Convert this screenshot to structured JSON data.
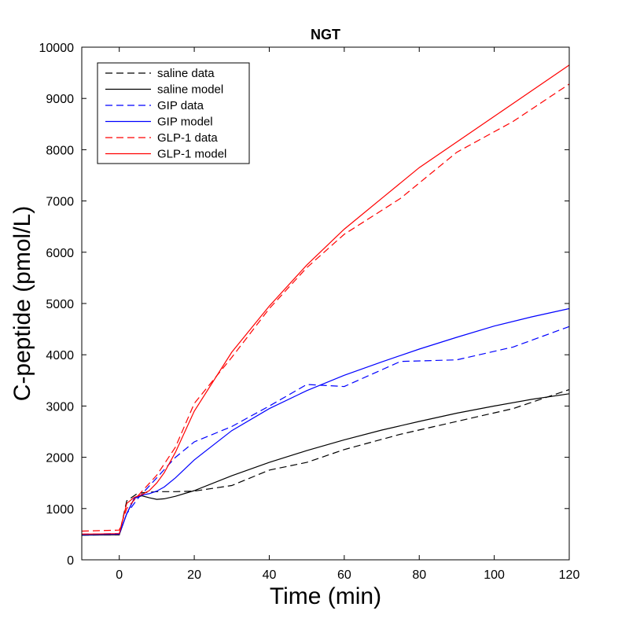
{
  "chart_data": {
    "type": "line",
    "title": "NGT",
    "xlabel": "Time (min)",
    "ylabel": "C-peptide (pmol/L)",
    "xlim": [
      -10,
      120
    ],
    "ylim": [
      0,
      10000
    ],
    "xticks": [
      0,
      20,
      40,
      60,
      80,
      100,
      120
    ],
    "yticks": [
      0,
      1000,
      2000,
      3000,
      4000,
      5000,
      6000,
      7000,
      8000,
      9000,
      10000
    ],
    "grid": false,
    "legend_position": "top-left",
    "series": [
      {
        "name": "saline data",
        "color": "#000000",
        "dash": "dashed",
        "x": [
          -10,
          0,
          2,
          5,
          10,
          15,
          20,
          30,
          40,
          50,
          60,
          75,
          90,
          105,
          120
        ],
        "y": [
          480,
          490,
          1150,
          1300,
          1330,
          1330,
          1340,
          1450,
          1750,
          1900,
          2150,
          2450,
          2700,
          2950,
          3320
        ]
      },
      {
        "name": "saline model",
        "color": "#000000",
        "dash": "solid",
        "x": [
          -10,
          0,
          2,
          4,
          6,
          8,
          10,
          12,
          15,
          20,
          30,
          40,
          50,
          60,
          70,
          80,
          90,
          100,
          110,
          120
        ],
        "y": [
          480,
          490,
          900,
          1200,
          1250,
          1210,
          1180,
          1190,
          1240,
          1350,
          1640,
          1900,
          2130,
          2340,
          2530,
          2700,
          2860,
          3000,
          3130,
          3240
        ]
      },
      {
        "name": "GIP data",
        "color": "#0000ff",
        "dash": "dashed",
        "x": [
          -10,
          0,
          2,
          5,
          10,
          15,
          20,
          30,
          40,
          50,
          60,
          75,
          90,
          105,
          120
        ],
        "y": [
          500,
          510,
          900,
          1200,
          1600,
          2000,
          2300,
          2600,
          3000,
          3420,
          3380,
          3870,
          3900,
          4150,
          4550
        ]
      },
      {
        "name": "GIP model",
        "color": "#0000ff",
        "dash": "solid",
        "x": [
          -10,
          0,
          2,
          4,
          6,
          8,
          10,
          12,
          15,
          20,
          30,
          40,
          50,
          60,
          70,
          80,
          90,
          100,
          110,
          120
        ],
        "y": [
          490,
          500,
          900,
          1200,
          1260,
          1290,
          1340,
          1420,
          1600,
          1950,
          2520,
          2950,
          3300,
          3600,
          3860,
          4110,
          4340,
          4560,
          4740,
          4900
        ]
      },
      {
        "name": "GLP-1 data",
        "color": "#ff0000",
        "dash": "dashed",
        "x": [
          -10,
          0,
          2,
          5,
          10,
          15,
          20,
          30,
          40,
          50,
          60,
          75,
          90,
          105,
          120
        ],
        "y": [
          560,
          580,
          1000,
          1250,
          1650,
          2200,
          3050,
          3950,
          4900,
          5700,
          6350,
          7050,
          7950,
          8550,
          9280
        ]
      },
      {
        "name": "GLP-1 model",
        "color": "#ff0000",
        "dash": "solid",
        "x": [
          -10,
          0,
          2,
          4,
          6,
          8,
          10,
          12,
          15,
          20,
          30,
          40,
          50,
          60,
          70,
          80,
          90,
          100,
          110,
          120
        ],
        "y": [
          500,
          510,
          1100,
          1220,
          1270,
          1350,
          1500,
          1700,
          2100,
          2900,
          4050,
          4950,
          5750,
          6450,
          7050,
          7650,
          8150,
          8650,
          9150,
          9650
        ]
      }
    ]
  }
}
